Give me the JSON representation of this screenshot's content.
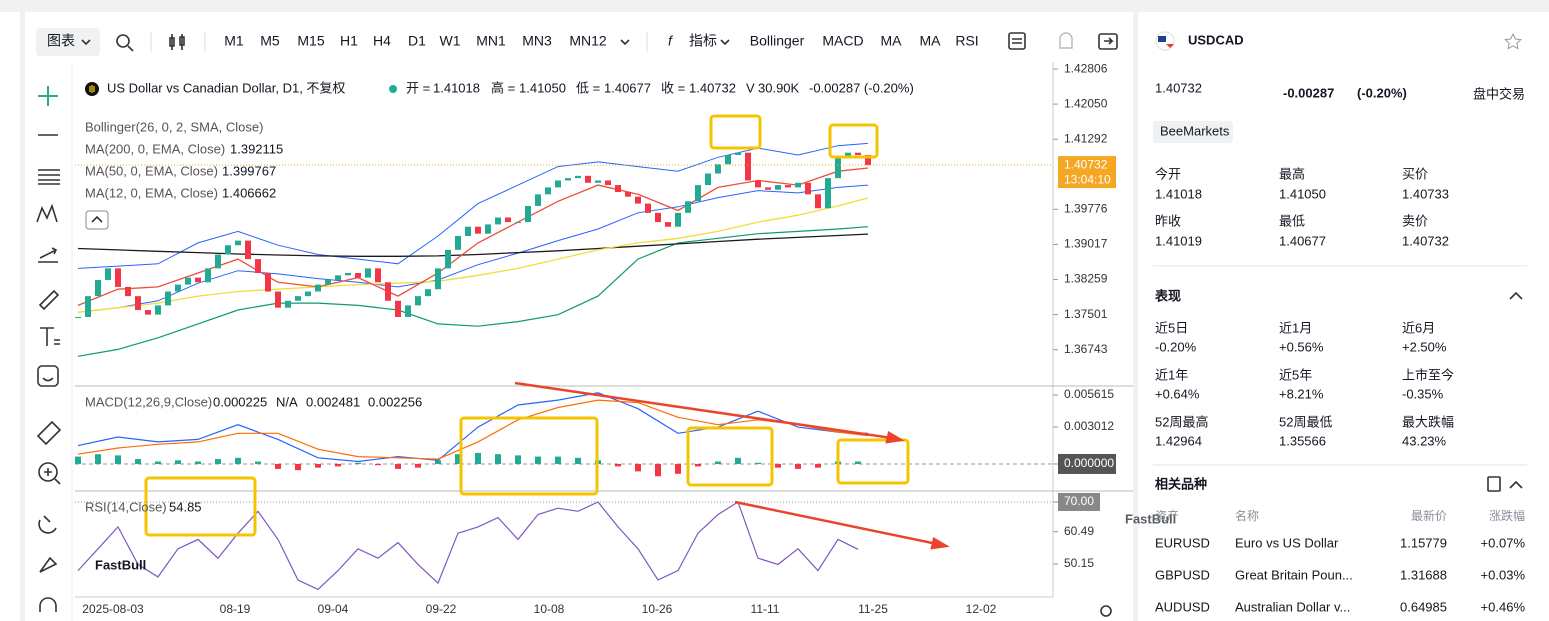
{
  "toolbar": {
    "chart_menu": "图表",
    "timeframes": [
      "M1",
      "M5",
      "M15",
      "H1",
      "H4",
      "D1",
      "W1",
      "MN1",
      "MN3",
      "MN12"
    ],
    "indicators_button": "指标",
    "indicators": [
      "Bollinger",
      "MACD",
      "MA",
      "MA",
      "RSI"
    ]
  },
  "legend": {
    "ohlc": [
      {
        "label": "开 =",
        "value": "1.41018"
      },
      {
        "label": "高 =",
        "value": "1.41050"
      },
      {
        "label": "低 =",
        "value": "1.40677"
      },
      {
        "label": "收 =",
        "value": "1.40732"
      }
    ],
    "volume_label": "V",
    "volume": "30.90K",
    "change": "-0.00287 (-0.20%)"
  },
  "chart_data": [
    {
      "type": "candlestick",
      "title": "US Dollar vs Canadian Dollar, D1, 不复权",
      "up_color": "#22ab94",
      "down_color": "#f23645",
      "values": [
        1.3745,
        1.379,
        1.3825,
        1.385,
        1.381,
        1.379,
        1.376,
        1.375,
        1.377,
        1.38,
        1.3815,
        1.383,
        1.382,
        1.385,
        1.388,
        1.39,
        1.391,
        1.387,
        1.384,
        1.38,
        1.3765,
        1.378,
        1.379,
        1.38,
        1.3815,
        1.3825,
        1.3835,
        1.384,
        1.383,
        1.385,
        1.382,
        1.378,
        1.3745,
        1.377,
        1.379,
        1.3805,
        1.385,
        1.389,
        1.392,
        1.394,
        1.3925,
        1.3945,
        1.396,
        1.395,
        1.395,
        1.3985,
        1.401,
        1.4025,
        1.404,
        1.4045,
        1.405,
        1.4035,
        1.404,
        1.403,
        1.4015,
        1.4005,
        1.399,
        1.397,
        1.395,
        1.394,
        1.397,
        1.3995,
        1.403,
        1.4055,
        1.4075,
        1.4095,
        1.41,
        1.404,
        1.4025,
        1.402,
        1.403,
        1.4025,
        1.4035,
        1.401,
        1.398,
        1.4045,
        1.409,
        1.41,
        1.4095,
        1.40732
      ],
      "xlim": [
        -0.3,
        97.5
      ],
      "ylim": [
        1.3598,
        1.4283
      ],
      "yticks": [
        1.42806,
        {
          "value": 1.4205,
          "label": "1.42050"
        },
        1.41292,
        1.39776,
        1.39017,
        1.38259,
        1.37501,
        1.36743
      ],
      "last_price": 1.40732,
      "countdown": "13:04:10",
      "last_color": "#f5a623",
      "overlay_x": [
        0,
        4,
        8,
        12,
        16,
        20,
        24,
        28,
        32,
        36,
        40,
        44,
        48,
        52,
        56,
        60,
        64,
        68,
        72,
        76,
        79
      ],
      "bollinger": {
        "name": "Bollinger(26, 0, 2, SMA, Close)",
        "color": "#2962ff",
        "lower_color": "#0d9a6f",
        "upper": [
          1.385,
          1.3855,
          1.386,
          1.3905,
          1.393,
          1.39,
          1.388,
          1.387,
          1.386,
          1.392,
          1.399,
          1.403,
          1.407,
          1.408,
          1.407,
          1.406,
          1.409,
          1.411,
          1.4095,
          1.4115,
          1.412
        ],
        "middle": [
          1.3755,
          1.3765,
          1.378,
          1.3818,
          1.3845,
          1.3838,
          1.3828,
          1.382,
          1.381,
          1.3825,
          1.3858,
          1.3883,
          1.391,
          1.3935,
          1.397,
          1.3983,
          1.4003,
          1.4018,
          1.4013,
          1.4025,
          1.403
        ],
        "lower": [
          1.366,
          1.3675,
          1.37,
          1.373,
          1.376,
          1.3775,
          1.3775,
          1.377,
          1.376,
          1.373,
          1.3725,
          1.3735,
          1.375,
          1.379,
          1.387,
          1.3905,
          1.3915,
          1.3925,
          1.393,
          1.3935,
          1.394
        ]
      },
      "series": [
        {
          "name": "MA(200, 0, EMA, Close)",
          "color": "#1a1a1a",
          "last": "1.392115",
          "values": [
            1.3893,
            1.389,
            1.3887,
            1.3884,
            1.3881,
            1.3879,
            1.3877,
            1.3876,
            1.3876,
            1.3877,
            1.388,
            1.3884,
            1.3888,
            1.3893,
            1.3898,
            1.3903,
            1.3908,
            1.3913,
            1.3917,
            1.3921,
            1.3924
          ]
        },
        {
          "name": "MA(50, 0, EMA, Close)",
          "color": "#f2dc3a",
          "last": "1.399767",
          "values": [
            1.3755,
            1.3765,
            1.3775,
            1.379,
            1.38,
            1.3805,
            1.381,
            1.3815,
            1.3818,
            1.3822,
            1.3835,
            1.385,
            1.387,
            1.389,
            1.3905,
            1.3915,
            1.393,
            1.395,
            1.3965,
            1.3985,
            1.4002
          ]
        },
        {
          "name": "MA(12, 0, EMA, Close)",
          "color": "#ef4d3c",
          "last": "1.406662",
          "values": [
            1.377,
            1.3805,
            1.381,
            1.384,
            1.387,
            1.382,
            1.381,
            1.383,
            1.379,
            1.384,
            1.3905,
            1.395,
            1.3995,
            1.403,
            1.401,
            1.3975,
            1.4025,
            1.404,
            1.403,
            1.406,
            1.4067
          ]
        }
      ]
    },
    {
      "type": "macd",
      "title": "MACD(12,26,9,Close)",
      "up_color": "#22ab94",
      "down_color": "#f23645",
      "readouts": [
        {
          "text": "0.000225",
          "color": "#22ab94"
        },
        {
          "text": "N/A",
          "color": "#f23645"
        },
        {
          "text": "0.002481",
          "color": "#2962ff"
        },
        {
          "text": "0.002256",
          "color": "#ff6d00"
        }
      ],
      "xlim": [
        -0.3,
        97.5
      ],
      "ylim": [
        -0.00212,
        0.00627
      ],
      "yticks": [
        0.005615,
        0.003012,
        {
          "value": 0,
          "label": "0.000000"
        }
      ],
      "x": [
        0,
        2,
        4,
        6,
        8,
        10,
        12,
        14,
        16,
        18,
        20,
        22,
        24,
        26,
        28,
        30,
        32,
        34,
        36,
        38,
        40,
        42,
        44,
        46,
        48,
        50,
        52,
        54,
        56,
        58,
        60,
        62,
        64,
        66,
        68,
        70,
        72,
        74,
        76,
        78
      ],
      "values": [
        0.0006,
        0.0008,
        0.0007,
        0.0004,
        0.0002,
        0.0003,
        0.0002,
        0.0004,
        0.0005,
        0.0002,
        -0.0004,
        -0.0005,
        -0.0003,
        -0.0002,
        0.0001,
        -0.0001,
        -0.0004,
        -0.0003,
        0.0003,
        0.0008,
        0.0009,
        0.0008,
        0.0007,
        0.0006,
        0.0006,
        0.0005,
        0.0003,
        -0.0002,
        -0.0006,
        -0.001,
        -0.0008,
        -0.0002,
        0.0002,
        0.0005,
        0.0001,
        -0.0003,
        -0.0004,
        -0.0003,
        0.0002,
        0.0002
      ],
      "overlay_x": [
        0,
        4,
        8,
        12,
        16,
        20,
        24,
        28,
        32,
        36,
        40,
        44,
        48,
        52,
        56,
        60,
        64,
        68,
        72,
        76,
        79
      ],
      "lines": [
        {
          "color": "#2962ff",
          "values": [
            0.0015,
            0.0022,
            0.0018,
            0.002,
            0.0032,
            0.002,
            0.0005,
            0.0002,
            0.0006,
            0.0003,
            0.003,
            0.0048,
            0.0052,
            0.0058,
            0.0045,
            0.0025,
            0.003,
            0.0043,
            0.003,
            0.0026,
            0.0025
          ]
        },
        {
          "color": "#ff6d00",
          "values": [
            0.0008,
            0.0013,
            0.0016,
            0.0018,
            0.0025,
            0.0025,
            0.0012,
            0.0006,
            0.0005,
            0.0004,
            0.0018,
            0.0036,
            0.0046,
            0.0052,
            0.005,
            0.0038,
            0.0032,
            0.0036,
            0.0032,
            0.0026,
            0.0023
          ]
        }
      ]
    },
    {
      "type": "line",
      "title": "RSI(14,Close)",
      "readout": "54.85",
      "color": "#7e57c2",
      "xlim": [
        -0.3,
        97.5
      ],
      "ylim": [
        39.55,
        72.88
      ],
      "yticks": [
        {
          "value": 70,
          "label": "70.00"
        },
        60.49,
        50.15
      ],
      "xticks": [
        {
          "value": 3.5,
          "label": "2025-08-03"
        },
        {
          "value": 15.7,
          "label": "08-19"
        },
        {
          "value": 25.5,
          "label": "09-04"
        },
        {
          "value": 36.3,
          "label": "09-22"
        },
        {
          "value": 47.1,
          "label": "10-08"
        },
        {
          "value": 57.9,
          "label": "10-26"
        },
        {
          "value": 68.7,
          "label": "11-11"
        },
        {
          "value": 79.5,
          "label": "11-25"
        },
        {
          "value": 90.3,
          "label": "12-02"
        }
      ],
      "x": [
        0,
        2,
        4,
        6,
        8,
        10,
        12,
        14,
        16,
        18,
        20,
        22,
        24,
        26,
        28,
        30,
        32,
        34,
        36,
        38,
        40,
        42,
        44,
        46,
        48,
        50,
        52,
        54,
        56,
        58,
        60,
        62,
        64,
        66,
        68,
        70,
        72,
        74,
        76,
        78
      ],
      "values": [
        48,
        55,
        62,
        50,
        46,
        55,
        58,
        52,
        60,
        67,
        58,
        45,
        42,
        48,
        55,
        52,
        57,
        50,
        44,
        60,
        62,
        65,
        58,
        66,
        68,
        67,
        70,
        62,
        55,
        45,
        48,
        60,
        66,
        70,
        52,
        50,
        55,
        48,
        58,
        54.85
      ]
    }
  ],
  "chart_watermark": "FastBull",
  "panel": {
    "symbol": "USDCAD",
    "price": "1.40732",
    "change": "-0.00287",
    "change_pct": "(-0.20%)",
    "session": "盘中交易",
    "broker": "BeeMarkets",
    "quote": [
      {
        "label": "今开",
        "value": "1.41018"
      },
      {
        "label": "最高",
        "value": "1.41050"
      },
      {
        "label": "买价",
        "value": "1.40733"
      },
      {
        "label": "昨收",
        "value": "1.41019"
      },
      {
        "label": "最低",
        "value": "1.40677"
      },
      {
        "label": "卖价",
        "value": "1.40732"
      }
    ],
    "performance_title": "表现",
    "performance": [
      {
        "label": "近5日",
        "value": "-0.20%"
      },
      {
        "label": "近1月",
        "value": "+0.56%"
      },
      {
        "label": "近6月",
        "value": "+2.50%"
      },
      {
        "label": "近1年",
        "value": "+0.64%"
      },
      {
        "label": "近5年",
        "value": "+8.21%"
      },
      {
        "label": "上市至今",
        "value": "-0.35%"
      },
      {
        "label": "52周最高",
        "value": "1.42964"
      },
      {
        "label": "52周最低",
        "value": "1.35566"
      },
      {
        "label": "最大跌幅",
        "value": "43.23%"
      }
    ],
    "related_title": "相关品种",
    "related_headers": [
      "资产",
      "名称",
      "最新价",
      "涨跌幅"
    ],
    "related": [
      [
        "EURUSD",
        "Euro vs US Dollar",
        "1.15779",
        "+0.07%"
      ],
      [
        "GBPUSD",
        "Great Britain Poun...",
        "1.31688",
        "+0.03%"
      ],
      [
        "AUDUSD",
        "Australian Dollar v...",
        "0.64985",
        "+0.46%"
      ]
    ],
    "watermark": "FastBull"
  }
}
